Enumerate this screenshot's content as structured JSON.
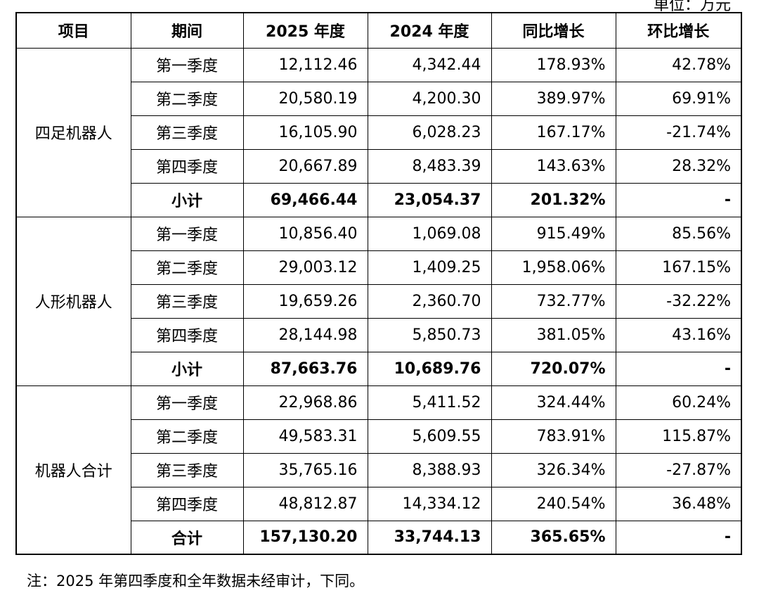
{
  "unit": "单位：万元",
  "table": {
    "header": [
      "项目",
      "期间",
      "2025 年度",
      "2024 年度",
      "同比增长",
      "环比增长"
    ],
    "groups": [
      {
        "name": "四足机器人",
        "rows": [
          [
            "第一季度",
            "12,112.46",
            "4,342.44",
            "178.93%",
            "42.78%"
          ],
          [
            "第二季度",
            "20,580.19",
            "4,200.30",
            "389.97%",
            "69.91%"
          ],
          [
            "第三季度",
            "16,105.90",
            "6,028.23",
            "167.17%",
            "-21.74%"
          ],
          [
            "第四季度",
            "20,667.89",
            "8,483.39",
            "143.63%",
            "28.32%"
          ],
          [
            "小计",
            "69,466.44",
            "23,054.37",
            "201.32%",
            "-"
          ]
        ]
      },
      {
        "name": "人形机器人",
        "rows": [
          [
            "第一季度",
            "10,856.40",
            "1,069.08",
            "915.49%",
            "85.56%"
          ],
          [
            "第二季度",
            "29,003.12",
            "1,409.25",
            "1,958.06%",
            "167.15%"
          ],
          [
            "第三季度",
            "19,659.26",
            "2,360.70",
            "732.77%",
            "-32.22%"
          ],
          [
            "第四季度",
            "28,144.98",
            "5,850.73",
            "381.05%",
            "43.16%"
          ],
          [
            "小计",
            "87,663.76",
            "10,689.76",
            "720.07%",
            "-"
          ]
        ]
      },
      {
        "name": "机器人合计",
        "rows": [
          [
            "第一季度",
            "22,968.86",
            "5,411.52",
            "324.44%",
            "60.24%"
          ],
          [
            "第二季度",
            "49,583.31",
            "5,609.55",
            "783.91%",
            "115.87%"
          ],
          [
            "第三季度",
            "35,765.16",
            "8,388.93",
            "326.34%",
            "-27.87%"
          ],
          [
            "第四季度",
            "48,812.87",
            "14,334.12",
            "240.54%",
            "36.48%"
          ],
          [
            "合计",
            "157,130.20",
            "33,744.13",
            "365.65%",
            "-"
          ]
        ]
      }
    ]
  },
  "note": "注：2025 年第四季度和全年数据未经审计，下同。"
}
